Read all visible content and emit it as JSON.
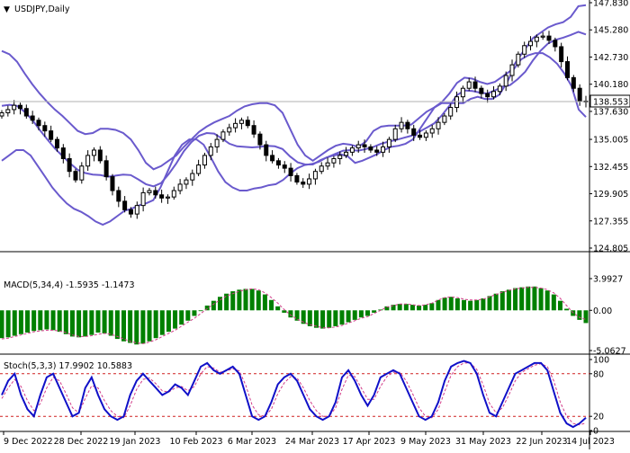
{
  "chart_data": [
    {
      "type": "candlestick",
      "title": "USDJPY,Daily",
      "overlay": "Bollinger Bands",
      "current_price_label": "138.553",
      "current_price": 138.553,
      "y_ticks": [
        "147.830",
        "145.280",
        "142.730",
        "140.180",
        "137.630",
        "135.005",
        "132.455",
        "129.905",
        "127.355",
        "124.805"
      ],
      "ylim": [
        124.805,
        147.83
      ],
      "x_ticks": [
        "9 Dec 2022",
        "28 Dec 2022",
        "19 Jan 2023",
        "10 Feb 2023",
        "6 Mar 2023",
        "24 Mar 2023",
        "17 Apr 2023",
        "9 May 2023",
        "31 May 2023",
        "22 Jun 2023",
        "14 Jul 2023"
      ],
      "close_series": [
        137.5,
        137.8,
        138.2,
        137.9,
        137.2,
        136.8,
        136.3,
        135.8,
        135.0,
        134.2,
        133.2,
        132.0,
        131.2,
        132.5,
        133.5,
        134.0,
        133.0,
        131.5,
        130.2,
        129.2,
        128.4,
        128.0,
        128.8,
        130.0,
        130.2,
        129.8,
        129.5,
        129.6,
        130.2,
        130.8,
        131.2,
        131.8,
        132.6,
        133.5,
        134.3,
        135.0,
        135.7,
        136.1,
        136.5,
        136.8,
        136.3,
        135.5,
        134.5,
        133.5,
        133.0,
        132.6,
        132.3,
        131.6,
        131.0,
        130.8,
        131.3,
        132.0,
        132.5,
        132.8,
        133.2,
        133.5,
        133.8,
        134.2,
        134.5,
        134.3,
        134.0,
        133.8,
        134.3,
        135.0,
        136.0,
        136.6,
        136.0,
        135.4,
        135.2,
        135.6,
        136.0,
        136.6,
        137.2,
        138.0,
        139.0,
        139.8,
        140.4,
        139.8,
        139.3,
        139.0,
        139.5,
        140.0,
        141.0,
        142.0,
        143.0,
        143.8,
        144.2,
        144.6,
        144.7,
        144.3,
        143.7,
        142.3,
        140.8,
        139.8,
        138.6,
        138.55
      ],
      "bollinger_upper": [
        143.3,
        143.0,
        142.3,
        141.2,
        140.2,
        139.3,
        138.5,
        137.8,
        137.2,
        136.5,
        135.8,
        135.5,
        135.6,
        136.0,
        136.0,
        135.9,
        135.6,
        135.0,
        134.0,
        132.8,
        132.2,
        132.5,
        133.0,
        133.5,
        134.3,
        135.0,
        135.7,
        136.2,
        136.6,
        136.9,
        137.2,
        137.7,
        138.1,
        138.3,
        138.4,
        138.4,
        138.2,
        137.5,
        136.0,
        134.5,
        133.5,
        133.0,
        133.5,
        134.0,
        134.4,
        134.6,
        134.5,
        134.3,
        134.8,
        135.8,
        136.2,
        136.3,
        136.3,
        136.3,
        136.4,
        137.0,
        137.6,
        138.0,
        138.5,
        139.3,
        140.3,
        140.8,
        140.7,
        140.4,
        140.2,
        140.4,
        140.9,
        141.4,
        142.5,
        143.5,
        144.5,
        145.0,
        145.5,
        145.8,
        146.0,
        146.5,
        147.5,
        147.6
      ],
      "bollinger_lower": [
        133.0,
        133.5,
        134.0,
        134.0,
        133.5,
        132.5,
        131.5,
        130.5,
        129.7,
        129.0,
        128.5,
        128.2,
        127.8,
        127.3,
        127.0,
        127.3,
        127.8,
        128.3,
        128.5,
        128.8,
        129.0,
        129.3,
        130.5,
        132.0,
        133.5,
        134.5,
        135.0,
        135.0,
        134.5,
        133.3,
        132.0,
        131.0,
        130.5,
        130.2,
        130.2,
        130.4,
        130.5,
        130.7,
        130.8,
        131.2,
        131.8,
        132.3,
        132.6,
        132.7,
        132.9,
        133.3,
        133.5,
        133.6,
        133.4,
        132.8,
        133.0,
        133.3,
        133.6,
        134.0,
        134.3,
        134.4,
        134.6,
        135.0,
        136.0,
        137.0,
        138.0,
        138.4,
        138.4,
        138.4,
        138.4,
        138.8,
        139.0,
        138.8,
        138.8,
        139.2,
        140.3,
        141.6,
        142.5,
        142.9,
        143.1,
        143.1,
        142.7,
        142.1,
        141.2,
        140.0,
        137.8,
        137.1
      ]
    },
    {
      "type": "bar+line",
      "title": "MACD(5,34,4)",
      "values_label": "-1.5935 -1.1473",
      "macd": -1.5935,
      "signal": -1.1473,
      "y_ticks": [
        "3.9927",
        "0.00",
        "-5.0627"
      ],
      "ylim": [
        -5.0627,
        3.9927
      ],
      "histogram": [
        -3.5,
        -3.4,
        -3.2,
        -3.0,
        -2.8,
        -2.6,
        -2.5,
        -2.4,
        -2.5,
        -2.7,
        -3.0,
        -3.3,
        -3.4,
        -3.3,
        -3.1,
        -2.8,
        -2.9,
        -3.2,
        -3.6,
        -3.9,
        -4.1,
        -4.3,
        -4.2,
        -3.9,
        -3.5,
        -3.1,
        -2.7,
        -2.3,
        -1.8,
        -1.3,
        -0.7,
        -0.1,
        0.6,
        1.2,
        1.7,
        2.1,
        2.4,
        2.6,
        2.7,
        2.7,
        2.5,
        2.0,
        1.3,
        0.5,
        -0.3,
        -0.9,
        -1.3,
        -1.7,
        -2.0,
        -2.2,
        -2.3,
        -2.2,
        -2.0,
        -1.8,
        -1.5,
        -1.2,
        -0.9,
        -0.7,
        -0.3,
        0.1,
        0.5,
        0.7,
        0.8,
        0.8,
        0.7,
        0.6,
        0.7,
        0.9,
        1.3,
        1.6,
        1.7,
        1.5,
        1.3,
        1.2,
        1.3,
        1.5,
        1.8,
        2.1,
        2.4,
        2.6,
        2.8,
        2.9,
        3.0,
        3.0,
        2.8,
        2.5,
        2.0,
        1.2,
        0.2,
        -0.7,
        -1.2,
        -1.6
      ],
      "signal_line": [
        -3.6,
        -3.5,
        -3.3,
        -3.1,
        -2.9,
        -2.7,
        -2.6,
        -2.5,
        -2.5,
        -2.6,
        -2.8,
        -3.1,
        -3.3,
        -3.3,
        -3.2,
        -3.0,
        -2.9,
        -3.0,
        -3.3,
        -3.6,
        -3.9,
        -4.1,
        -4.2,
        -4.0,
        -3.7,
        -3.3,
        -2.9,
        -2.5,
        -2.0,
        -1.5,
        -1.0,
        -0.4,
        0.2,
        0.8,
        1.3,
        1.8,
        2.1,
        2.4,
        2.6,
        2.7,
        2.6,
        2.2,
        1.6,
        0.9,
        0.1,
        -0.6,
        -1.1,
        -1.5,
        -1.8,
        -2.0,
        -2.2,
        -2.2,
        -2.1,
        -1.9,
        -1.6,
        -1.3,
        -1.0,
        -0.8,
        -0.4,
        0.0,
        0.4,
        0.6,
        0.8,
        0.8,
        0.7,
        0.6,
        0.7,
        0.9,
        1.3,
        1.6,
        1.7,
        1.6,
        1.4,
        1.3,
        1.3,
        1.4,
        1.7,
        2.0,
        2.3,
        2.5,
        2.7,
        2.8,
        2.9,
        2.9,
        2.8,
        2.6,
        2.2,
        1.5,
        0.6,
        -0.3,
        -0.9,
        -1.15
      ]
    },
    {
      "type": "line",
      "title": "Stoch(5,3,3)",
      "values_label": "17.9902 10.5883",
      "k_value": 17.9902,
      "d_value": 10.5883,
      "y_ticks": [
        "100",
        "80",
        "20",
        "0"
      ],
      "ylim": [
        0,
        100
      ],
      "levels": [
        80,
        20
      ],
      "k_line": [
        50,
        70,
        80,
        50,
        30,
        20,
        50,
        75,
        80,
        60,
        40,
        20,
        25,
        60,
        75,
        50,
        30,
        20,
        15,
        20,
        50,
        70,
        80,
        70,
        60,
        50,
        55,
        65,
        60,
        50,
        70,
        90,
        95,
        85,
        80,
        85,
        90,
        80,
        50,
        20,
        15,
        20,
        40,
        65,
        75,
        80,
        70,
        50,
        30,
        20,
        15,
        20,
        40,
        75,
        85,
        70,
        50,
        35,
        50,
        75,
        80,
        85,
        80,
        60,
        40,
        20,
        15,
        20,
        40,
        70,
        90,
        95,
        98,
        95,
        80,
        50,
        25,
        20,
        40,
        60,
        80,
        85,
        90,
        95,
        95,
        85,
        55,
        25,
        10,
        5,
        10,
        18
      ],
      "d_line": [
        45,
        60,
        72,
        62,
        42,
        28,
        38,
        60,
        75,
        70,
        52,
        32,
        25,
        45,
        63,
        60,
        42,
        28,
        20,
        18,
        35,
        58,
        72,
        74,
        66,
        56,
        54,
        60,
        62,
        56,
        62,
        80,
        90,
        88,
        82,
        84,
        87,
        84,
        64,
        36,
        22,
        20,
        30,
        52,
        67,
        76,
        74,
        60,
        42,
        28,
        20,
        20,
        32,
        58,
        78,
        76,
        60,
        44,
        44,
        62,
        76,
        82,
        82,
        70,
        52,
        32,
        20,
        18,
        30,
        55,
        78,
        90,
        95,
        95,
        86,
        64,
        38,
        25,
        32,
        50,
        70,
        82,
        87,
        92,
        94,
        90,
        70,
        40,
        20,
        10,
        8,
        10.6
      ]
    }
  ]
}
